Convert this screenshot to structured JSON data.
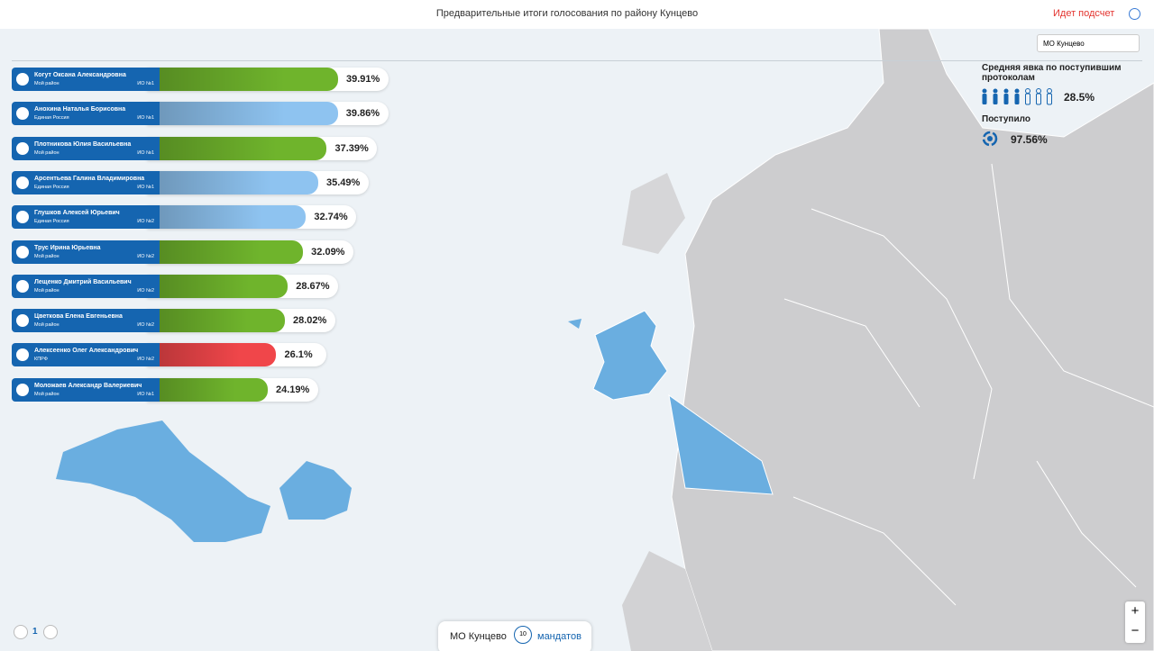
{
  "header": {
    "title": "Предварительные итоги голосования по району Кунцево",
    "status": "Идет подсчет"
  },
  "district_select": "МО Кунцево",
  "turnout": {
    "label": "Средняя явка по поступившим протоколам",
    "value": "28.5%"
  },
  "received": {
    "label": "Поступило",
    "value": "97.56%"
  },
  "candidates": [
    {
      "name": "Когут Оксана Александровна",
      "party": "Мой район",
      "district": "ИО №1",
      "value": 39.91,
      "label": "39.91%",
      "color": "#6fb42c"
    },
    {
      "name": "Анохина Наталья Борисовна",
      "party": "Единая Россия",
      "district": "ИО №1",
      "value": 39.86,
      "label": "39.86%",
      "color": "#8ec3f0"
    },
    {
      "name": "Плотникова Юлия Васильевна",
      "party": "Мой район",
      "district": "ИО №1",
      "value": 37.39,
      "label": "37.39%",
      "color": "#6fb42c"
    },
    {
      "name": "Арсентьева Галина Владимировна",
      "party": "Единая Россия",
      "district": "ИО №1",
      "value": 35.49,
      "label": "35.49%",
      "color": "#8ec3f0"
    },
    {
      "name": "Глушков Алексей Юрьевич",
      "party": "Единая Россия",
      "district": "ИО №2",
      "value": 32.74,
      "label": "32.74%",
      "color": "#8ec3f0"
    },
    {
      "name": "Трус Ирина Юрьевна",
      "party": "Мой район",
      "district": "ИО №2",
      "value": 32.09,
      "label": "32.09%",
      "color": "#6fb42c"
    },
    {
      "name": "Лещенко Дмитрий Васильевич",
      "party": "Мой район",
      "district": "ИО №2",
      "value": 28.67,
      "label": "28.67%",
      "color": "#6fb42c"
    },
    {
      "name": "Цветкова Елена Евгеньевна",
      "party": "Мой район",
      "district": "ИО №2",
      "value": 28.02,
      "label": "28.02%",
      "color": "#6fb42c"
    },
    {
      "name": "Алексеенко Олег Александрович",
      "party": "КПРФ",
      "district": "ИО №2",
      "value": 26.1,
      "label": "26.1%",
      "color": "#f0464a"
    },
    {
      "name": "Моложаев Александр Валериевич",
      "party": "Мой район",
      "district": "ИО №1",
      "value": 24.19,
      "label": "24.19%",
      "color": "#6fb42c"
    }
  ],
  "pagination": {
    "page": "1"
  },
  "footer": {
    "district": "МО Кунцево",
    "mandates": "10",
    "mandates_label": "мандатов"
  },
  "zoom": {
    "in": "+",
    "out": "−"
  }
}
